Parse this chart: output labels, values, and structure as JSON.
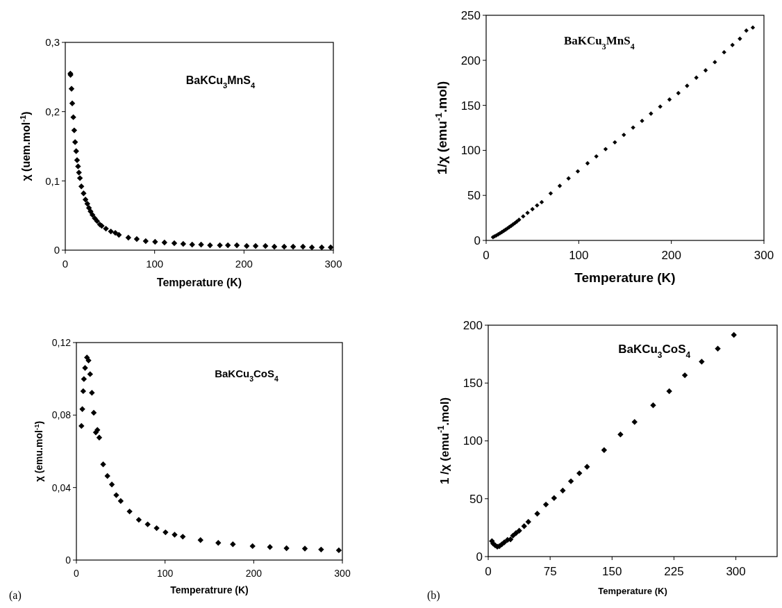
{
  "chart_data": [
    {
      "type": "scatter",
      "xlabel": "Temperature (K)",
      "ylabel": "χ (uem.mol$^{-1}$)",
      "annotations": [
        "BaKCu$_{3}$MnS$_{4}$"
      ],
      "marker": "diamond",
      "grid": false,
      "xlim": [
        0,
        300
      ],
      "ylim": [
        0,
        0.3
      ],
      "xticks": [
        0,
        100,
        200,
        300
      ],
      "yticks": [
        {
          "value": 0,
          "label": "0"
        },
        {
          "value": 0.1,
          "label": "0,1"
        },
        {
          "value": 0.2,
          "label": "0,2"
        },
        {
          "value": 0.3,
          "label": "0,3"
        }
      ],
      "series": [
        {
          "color": "#000000",
          "x": [
            5.7,
            5.9,
            7,
            7.8,
            9,
            10,
            11,
            12.2,
            13.2,
            14.3,
            15.3,
            16.4,
            18,
            20.5,
            22.6,
            24.7,
            26.5,
            28.3,
            30.4,
            33,
            35.6,
            38.7,
            40.8,
            45.5,
            51,
            56,
            60,
            70.6,
            80,
            90,
            100.5,
            111,
            122,
            132,
            142,
            152,
            162,
            173,
            182,
            192,
            203,
            213,
            224,
            234,
            245,
            255,
            266,
            276,
            287,
            297
          ],
          "values": [
            0.255,
            0.253,
            0.233,
            0.212,
            0.192,
            0.173,
            0.156,
            0.143,
            0.13,
            0.121,
            0.112,
            0.104,
            0.092,
            0.082,
            0.073,
            0.067,
            0.061,
            0.056,
            0.051,
            0.046,
            0.042,
            0.037,
            0.035,
            0.031,
            0.027,
            0.025,
            0.022,
            0.018,
            0.016,
            0.013,
            0.012,
            0.011,
            0.01,
            0.009,
            0.008,
            0.008,
            0.007,
            0.007,
            0.007,
            0.007,
            0.006,
            0.006,
            0.006,
            0.005,
            0.005,
            0.005,
            0.005,
            0.004,
            0.004,
            0.004
          ]
        }
      ]
    },
    {
      "type": "scatter",
      "xlabel": "Temperature (K)",
      "ylabel": "1/χ (emu$^{-1}$.mol)",
      "annotations": [
        "BaKCu$_{3}$MnS$_{4}$"
      ],
      "marker": "diamond",
      "grid": false,
      "xlim": [
        0,
        300
      ],
      "ylim": [
        0,
        250
      ],
      "xticks": [
        0,
        100,
        200,
        300
      ],
      "yticks": [
        0,
        50,
        100,
        150,
        200,
        250
      ],
      "series": [
        {
          "color": "#000000",
          "x": [
            7.4,
            9,
            11,
            13,
            15,
            17,
            19,
            21,
            23,
            25,
            27,
            29,
            31,
            33,
            35.5,
            40,
            44.7,
            50,
            55,
            60,
            69.7,
            79.5,
            89,
            99,
            109.5,
            119,
            129,
            139,
            148.7,
            158.7,
            168.4,
            178,
            188,
            198,
            207.6,
            217,
            227,
            237,
            247,
            257,
            266,
            274,
            281,
            288
          ],
          "values": [
            3.6,
            4.5,
            5.5,
            6.8,
            8,
            9.3,
            10.6,
            12,
            13.4,
            14.8,
            16.2,
            17.7,
            19.2,
            20.8,
            23,
            26.7,
            30.6,
            34.7,
            38.9,
            42.5,
            52.2,
            60.6,
            68.9,
            76.7,
            85.6,
            93.3,
            101.4,
            108.9,
            117.2,
            125.3,
            132.8,
            140.8,
            148.6,
            156.4,
            163.6,
            171.7,
            180.8,
            188.9,
            198,
            209,
            217,
            224,
            233,
            236.4
          ]
        }
      ]
    },
    {
      "type": "scatter",
      "xlabel": "Temperatrure (K)",
      "ylabel": "χ (emu.mol$^{-1}$)",
      "annotations": [
        "BaKCu$_{3}$CoS$_{4}$",
        "(a)"
      ],
      "marker": "diamond",
      "grid": false,
      "xlim": [
        0,
        300
      ],
      "ylim": [
        0,
        0.12
      ],
      "xticks": [
        0,
        100,
        200,
        300
      ],
      "yticks": [
        {
          "value": 0,
          "label": "0"
        },
        {
          "value": 0.04,
          "label": "0,04"
        },
        {
          "value": 0.08,
          "label": "0,08"
        },
        {
          "value": 0.12,
          "label": "0,12"
        }
      ],
      "series": [
        {
          "color": "#000000",
          "x": [
            5.7,
            6.7,
            7.7,
            8.5,
            9.8,
            11.9,
            13.7,
            15.5,
            17.5,
            19.6,
            21.9,
            23.7,
            25.8,
            30.2,
            35,
            40,
            45,
            50,
            60,
            70.4,
            80.4,
            90.5,
            100.5,
            110.8,
            120,
            140,
            160,
            176.5,
            198.7,
            218.3,
            237,
            257.7,
            276,
            296
          ],
          "values": [
            0.074,
            0.0833,
            0.0932,
            0.0999,
            0.106,
            0.1118,
            0.1101,
            0.1026,
            0.0923,
            0.0813,
            0.0704,
            0.0718,
            0.0676,
            0.0528,
            0.0464,
            0.0417,
            0.0358,
            0.0326,
            0.0268,
            0.0222,
            0.0197,
            0.0176,
            0.0153,
            0.014,
            0.0129,
            0.011,
            0.0095,
            0.0087,
            0.0077,
            0.0072,
            0.0065,
            0.0063,
            0.0058,
            0.0054
          ]
        }
      ]
    },
    {
      "type": "scatter",
      "xlabel": "Temperature (K)",
      "ylabel": "1 /χ (emu$^{-1}$.mol)",
      "annotations": [
        "BaKCu$_{3}$CoS$_{4}$",
        "(b)"
      ],
      "marker": "diamond",
      "grid": false,
      "xlim": [
        0,
        350
      ],
      "ylim": [
        0,
        200
      ],
      "xticks": [
        0,
        75,
        150,
        225,
        300
      ],
      "yticks": [
        0,
        50,
        100,
        150,
        200
      ],
      "series": [
        {
          "color": "#000000",
          "x": [
            4.5,
            6,
            8.4,
            11,
            13.5,
            16.5,
            19.5,
            23.4,
            27,
            30,
            33.6,
            37.5,
            43.5,
            48.6,
            59.4,
            69.9,
            79.8,
            90.3,
            100.2,
            110.4,
            119.7,
            140.4,
            160.2,
            177.3,
            199.8,
            219.3,
            238.2,
            258.6,
            278.1,
            297.6
          ],
          "values": [
            13.4,
            11.2,
            9.7,
            8.6,
            9,
            10.6,
            12.3,
            14.4,
            14.9,
            18.1,
            20.3,
            22.4,
            26.3,
            30,
            37.1,
            45,
            50.6,
            57.1,
            65.1,
            72,
            77.6,
            92,
            105.6,
            116.4,
            130.8,
            142.9,
            156.7,
            168.5,
            179.7,
            191.6
          ]
        }
      ]
    }
  ]
}
